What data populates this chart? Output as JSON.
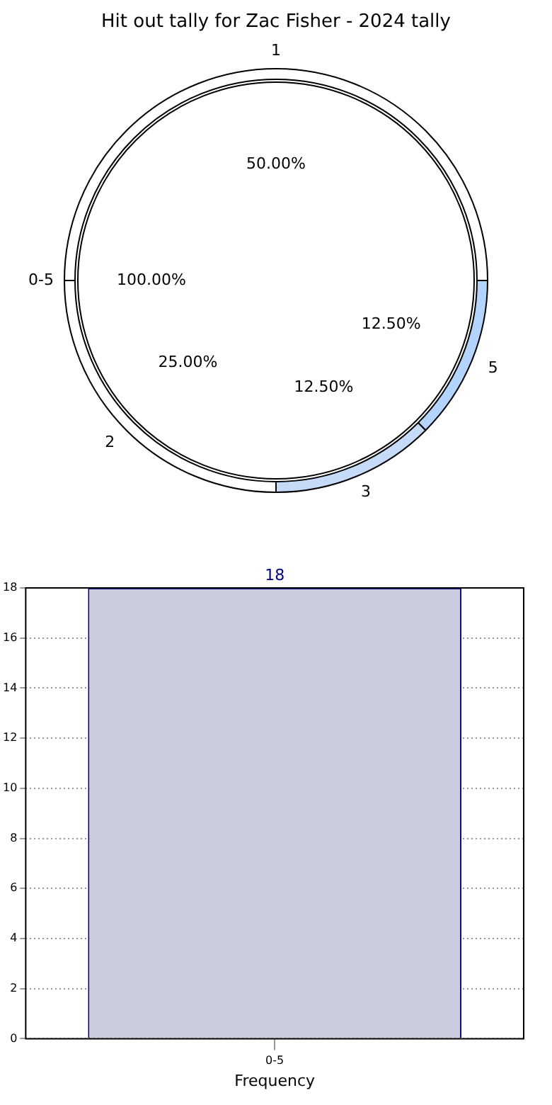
{
  "chart_data": [
    {
      "type": "pie",
      "title": "Hit out tally for Zac Fisher - 2024 tally",
      "categories": [
        "0-5"
      ],
      "values": [
        100
      ],
      "colors": [
        "#ffffff"
      ],
      "value_labels": [
        "100.00%"
      ]
    },
    {
      "type": "donut",
      "categories": [
        "1",
        "5",
        "3",
        "2"
      ],
      "values": [
        50,
        12.5,
        12.5,
        25
      ],
      "colors": [
        "#ffffff",
        "#b3d4fc",
        "#c6dbf7",
        "#ffffff"
      ],
      "value_labels": [
        "50.00%",
        "12.50%",
        "12.50%",
        "25.00%"
      ]
    },
    {
      "type": "bar",
      "categories": [
        "0-5"
      ],
      "values": [
        18
      ],
      "color": "#ccccdf",
      "xlabel": "Frequency",
      "ylim": [
        0,
        18
      ],
      "yticks": [
        0,
        2,
        4,
        6,
        8,
        10,
        12,
        14,
        16,
        18
      ],
      "grid": true,
      "data_labels": true
    }
  ]
}
